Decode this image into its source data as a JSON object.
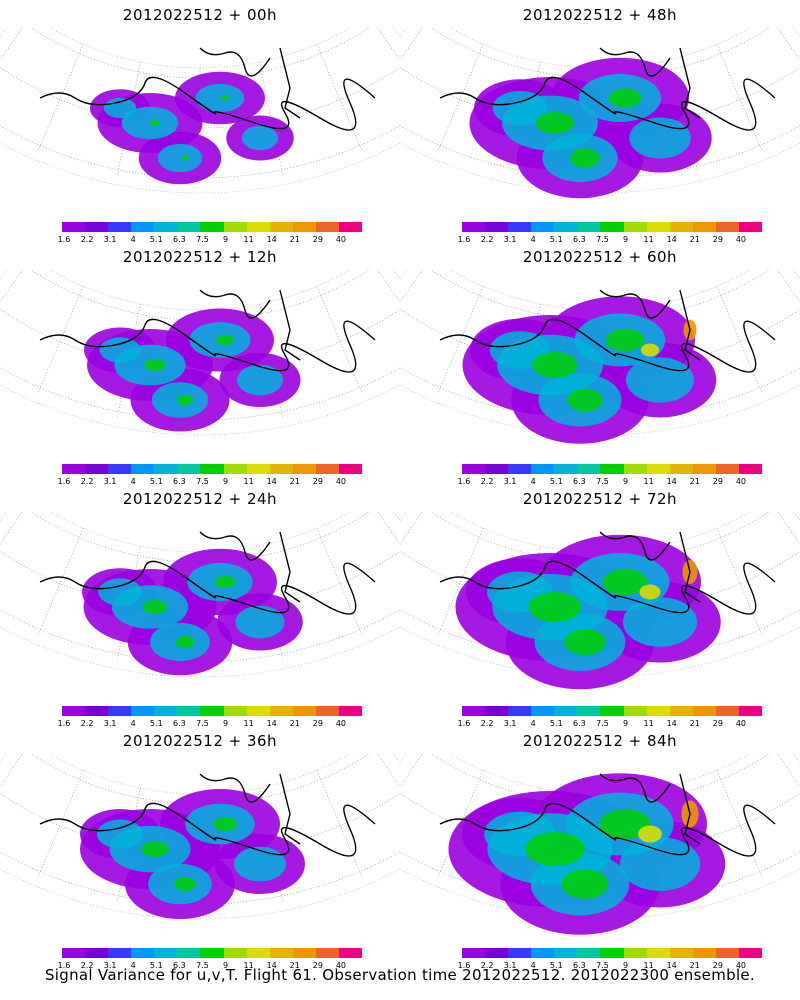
{
  "panels": [
    {
      "title": "2012022512 + 00h",
      "level": 0.15
    },
    {
      "title": "2012022512 + 48h",
      "level": 0.55
    },
    {
      "title": "2012022512 + 12h",
      "level": 0.3
    },
    {
      "title": "2012022512 + 60h",
      "level": 0.65
    },
    {
      "title": "2012022512 + 24h",
      "level": 0.35
    },
    {
      "title": "2012022512 + 72h",
      "level": 0.75
    },
    {
      "title": "2012022512 + 36h",
      "level": 0.4
    },
    {
      "title": "2012022512 + 84h",
      "level": 0.85
    }
  ],
  "colorbar": {
    "colors": [
      "#9b00e0",
      "#7a00d8",
      "#3838ff",
      "#0096ff",
      "#00b4dc",
      "#00c8a0",
      "#00d000",
      "#a0dc00",
      "#dcdc00",
      "#e6b400",
      "#f09600",
      "#f06428",
      "#f00080"
    ],
    "labels": [
      "1.6",
      "2.2",
      "3.1",
      "4",
      "5.1",
      "6.3",
      "7.5",
      "9",
      "11",
      "14",
      "21",
      "29",
      "40"
    ]
  },
  "caption": "Signal Variance for u,v,T. Flight 61. Observation time 2012022512. 2012022300 ensemble."
}
